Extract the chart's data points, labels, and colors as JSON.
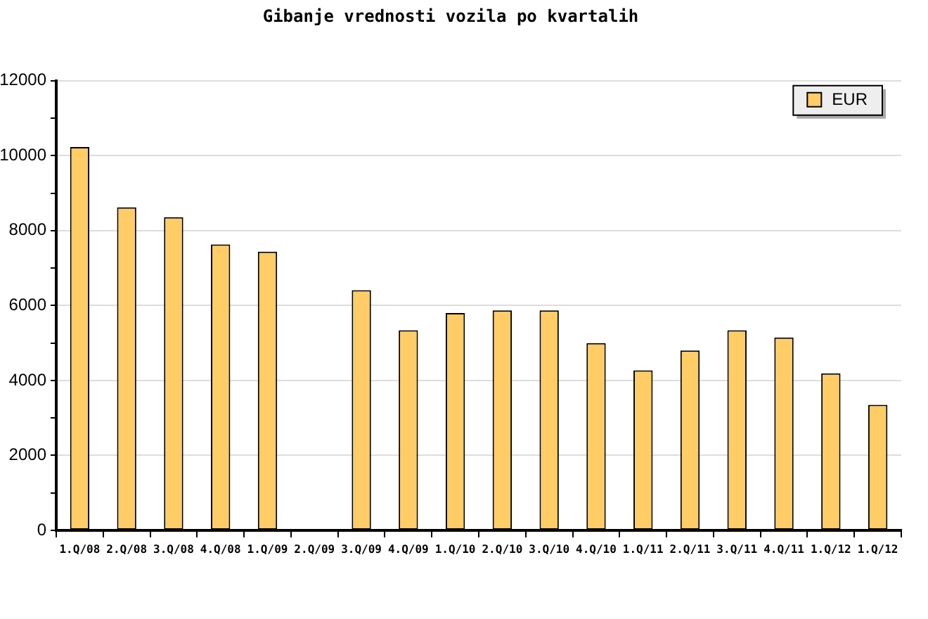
{
  "chart_data": {
    "type": "bar",
    "title": "Gibanje vrednosti vozila po kvartalih",
    "categories": [
      "1.Q/08",
      "2.Q/08",
      "3.Q/08",
      "4.Q/08",
      "1.Q/09",
      "2.Q/09",
      "3.Q/09",
      "4.Q/09",
      "1.Q/10",
      "2.Q/10",
      "3.Q/10",
      "4.Q/10",
      "1.Q/11",
      "2.Q/11",
      "3.Q/11",
      "4.Q/11",
      "1.Q/12",
      "1.Q/12"
    ],
    "series": [
      {
        "name": "EUR",
        "color": "#ffcc66",
        "values": [
          10230,
          8620,
          8360,
          7630,
          7440,
          null,
          6410,
          5340,
          5800,
          5870,
          5870,
          5000,
          4270,
          4800,
          5340,
          5150,
          4190,
          3350
        ]
      }
    ],
    "ylim": [
      0,
      12000
    ],
    "yticks": [
      0,
      {
        "value": 1000,
        "label": null
      },
      2000,
      {
        "value": 3000,
        "label": null
      },
      4000,
      {
        "value": 5000,
        "label": null
      },
      6000,
      {
        "value": 7000,
        "label": null
      },
      8000,
      {
        "value": 9000,
        "label": null
      },
      10000,
      {
        "value": 11000,
        "label": null
      },
      12000
    ],
    "grid": "y",
    "legend": "top right"
  }
}
